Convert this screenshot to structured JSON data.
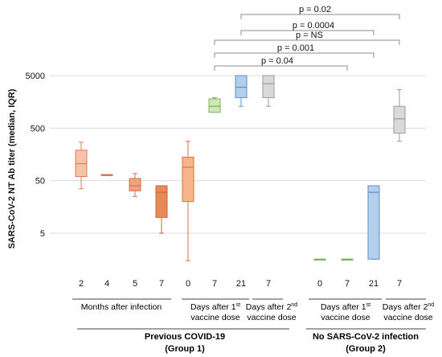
{
  "chart_data": {
    "type": "box",
    "ylabel": "SARS-CoV-2 NT Ab titer (median, IQR)",
    "yscale": "log",
    "ylim": [
      1,
      7000
    ],
    "yticks": [
      5,
      50,
      500,
      5000
    ],
    "grid": true,
    "boxes": [
      {
        "group": "Group 1",
        "x": "2",
        "min": 35,
        "q1": 60,
        "median": 105,
        "q3": 190,
        "max": 270,
        "color": "#f5c4a8",
        "edge": "#e07a55"
      },
      {
        "group": "Group 1",
        "x": "4",
        "min": 65,
        "q1": 65,
        "median": 65,
        "q3": 65,
        "max": 65,
        "color": "#f0a27c",
        "edge": "#d9714a"
      },
      {
        "group": "Group 1",
        "x": "5",
        "min": 25,
        "q1": 32,
        "median": 40,
        "q3": 55,
        "max": 68,
        "color": "#f0a27c",
        "edge": "#d9714a"
      },
      {
        "group": "Group 1",
        "x": "7",
        "min": 5,
        "q1": 10,
        "median": 30,
        "q3": 40,
        "max": 40,
        "color": "#e98a56",
        "edge": "#c9653a"
      },
      {
        "group": "Group 1",
        "x": "0",
        "min": 1.5,
        "q1": 20,
        "median": 90,
        "q3": 140,
        "max": 280,
        "color": "#f7b48a",
        "edge": "#d9714a"
      },
      {
        "group": "Group 1",
        "x": "7",
        "min": 1000,
        "q1": 1000,
        "median": 1300,
        "q3": 1800,
        "max": 1900,
        "color": "#cfe8b8",
        "edge": "#79b25a"
      },
      {
        "group": "Group 1",
        "x": "21",
        "min": 1300,
        "q1": 1900,
        "median": 3000,
        "q3": 5000,
        "max": 5000,
        "color": "#b3cfec",
        "edge": "#5f8fc5"
      },
      {
        "group": "Group 1",
        "x": "7",
        "min": 1300,
        "q1": 1900,
        "median": 3500,
        "q3": 5000,
        "max": 5000,
        "color": "#d9d9d9",
        "edge": "#9a9a9a"
      },
      {
        "group": "Group 2",
        "x": "0",
        "min": 1.6,
        "q1": 1.6,
        "median": 1.6,
        "q3": 1.6,
        "max": 1.6,
        "color": "#cfe8b8",
        "edge": "#79b25a"
      },
      {
        "group": "Group 2",
        "x": "7",
        "min": 1.6,
        "q1": 1.6,
        "median": 1.6,
        "q3": 1.6,
        "max": 1.6,
        "color": "#cfe8b8",
        "edge": "#79b25a"
      },
      {
        "group": "Group 2",
        "x": "21",
        "min": 1.6,
        "q1": 1.6,
        "median": 30,
        "q3": 40,
        "max": 40,
        "color": "#b3cfec",
        "edge": "#5f8fc5"
      },
      {
        "group": "Group 2",
        "x": "7",
        "min": 280,
        "q1": 400,
        "median": 750,
        "q3": 1300,
        "max": 2700,
        "color": "#d9d9d9",
        "edge": "#9a9a9a"
      }
    ],
    "comparisons": [
      {
        "label": "p = 0.02"
      },
      {
        "label": "p = 0.0004"
      },
      {
        "label": "p = NS"
      },
      {
        "label": "p = 0.001"
      },
      {
        "label": "p = 0.04"
      }
    ],
    "axis_labels": {
      "months_after_infection": "Months after infection",
      "days_after_1st_a": "Days after 1",
      "days_after_1st_b": "vaccine dose",
      "days_after_2nd_a": "Days after 2",
      "days_after_2nd_b": "vaccine dose",
      "sup_st": "st",
      "sup_nd": "nd"
    },
    "groups": {
      "group1_line1": "Previous COVID-19",
      "group1_line2": "(Group 1)",
      "group2_line1": "No SARS-CoV-2 infection",
      "group2_line2": "(Group 2)"
    }
  }
}
